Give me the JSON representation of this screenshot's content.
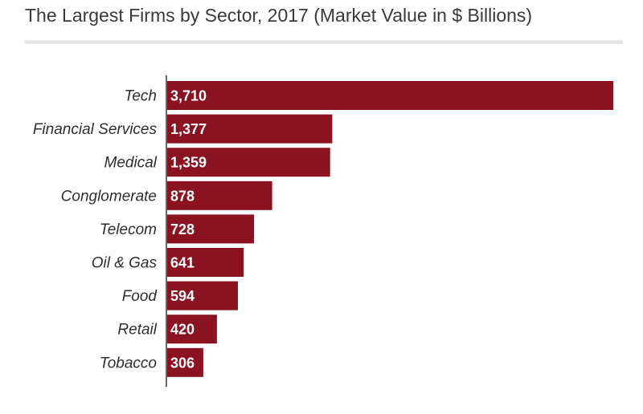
{
  "colors": {
    "bar": "#8b1320",
    "axis": "#666666",
    "title": "#3a3a3a",
    "rule": "#e6e6e6",
    "value_text": "#ffffff"
  },
  "chart_data": {
    "type": "bar",
    "orientation": "horizontal",
    "title": "The Largest Firms by Sector, 2017 (Market Value in $ Billions)",
    "xlabel": "",
    "ylabel": "",
    "xlim": [
      0,
      3710
    ],
    "grid": false,
    "categories": [
      "Tech",
      "Financial Services",
      "Medical",
      "Conglomerate",
      "Telecom",
      "Oil & Gas",
      "Food",
      "Retail",
      "Tobacco"
    ],
    "values": [
      3710,
      1377,
      1359,
      878,
      728,
      641,
      594,
      420,
      306
    ],
    "value_labels": [
      "3,710",
      "1,377",
      "1,359",
      "878",
      "728",
      "641",
      "594",
      "420",
      "306"
    ]
  }
}
